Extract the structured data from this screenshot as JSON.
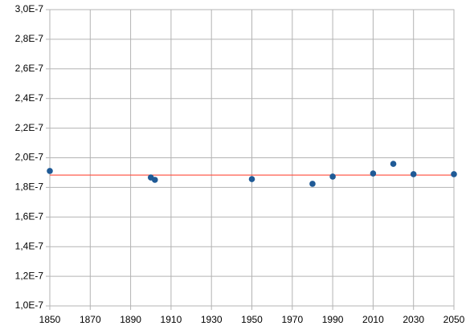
{
  "chart_data": {
    "type": "scatter",
    "x": [
      1850,
      1900,
      1902,
      1950,
      1980,
      1990,
      2010,
      2020,
      2030,
      2050
    ],
    "series": [
      {
        "color": "#1f5a96",
        "values": [
          1.911e-07,
          1.867e-07,
          1.851e-07,
          1.856e-07,
          1.824e-07,
          1.873e-07,
          1.894e-07,
          1.959e-07,
          1.889e-07,
          1.889e-07
        ]
      }
    ],
    "hline": {
      "value": 1.883e-07,
      "color": "#ff4b3a"
    },
    "xlim": [
      1850,
      2050
    ],
    "xticks": [
      1850,
      1870,
      1890,
      1910,
      1930,
      1950,
      1970,
      1990,
      2010,
      2030,
      2050
    ],
    "ylim": [
      1e-07,
      3e-07
    ],
    "yticks": [
      {
        "value": 1e-07,
        "label": "1,0E-7"
      },
      {
        "value": 1.2e-07,
        "label": "1,2E-7"
      },
      {
        "value": 1.4e-07,
        "label": "1,4E-7"
      },
      {
        "value": 1.6e-07,
        "label": "1,6E-7"
      },
      {
        "value": 1.8e-07,
        "label": "1,8E-7"
      },
      {
        "value": 2e-07,
        "label": "2,0E-7"
      },
      {
        "value": 2.2e-07,
        "label": "2,2E-7"
      },
      {
        "value": 2.4e-07,
        "label": "2,4E-7"
      },
      {
        "value": 2.6e-07,
        "label": "2,6E-7"
      },
      {
        "value": 2.8e-07,
        "label": "2,8E-7"
      },
      {
        "value": 3e-07,
        "label": "3,0E-7"
      }
    ],
    "grid": true
  }
}
